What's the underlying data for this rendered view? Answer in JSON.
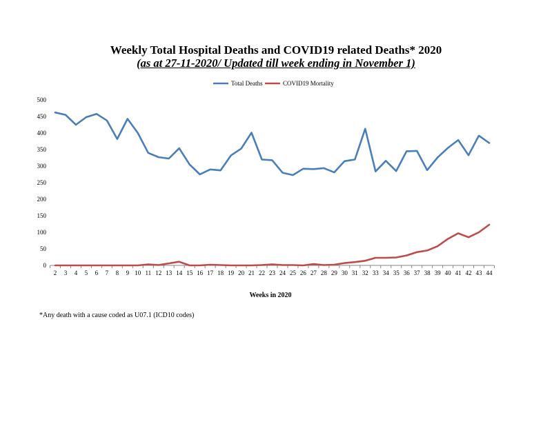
{
  "titles": {
    "main": "Weekly Total Hospital Deaths and COVID19 related Deaths* 2020",
    "sub": "(as at 27-11-2020/ Updated till week ending in November 1)"
  },
  "footnote": "*Any death with a cause coded as  U07.1 (ICD10 codes)",
  "chart_data": {
    "type": "line",
    "xlabel": "Weeks in 2020",
    "ylabel": "",
    "ylim": [
      0,
      500
    ],
    "yticks": [
      0,
      50,
      100,
      150,
      200,
      250,
      300,
      350,
      400,
      450,
      500
    ],
    "grid": false,
    "legend_position": "top-center",
    "categories": [
      "2",
      "3",
      "4",
      "5",
      "6",
      "7",
      "8",
      "9",
      "10",
      "11",
      "12",
      "13",
      "14",
      "15",
      "16",
      "17",
      "18",
      "19",
      "20",
      "21",
      "22",
      "23",
      "24",
      "25",
      "26",
      "27",
      "28",
      "29",
      "30",
      "31",
      "32",
      "33",
      "34",
      "35",
      "36",
      "37",
      "38",
      "39",
      "40",
      "41",
      "42",
      "43",
      "44"
    ],
    "series": [
      {
        "name": "Total Deaths",
        "color": "#4a7ebb",
        "values": [
          462,
          455,
          425,
          448,
          458,
          438,
          382,
          443,
          400,
          340,
          327,
          323,
          354,
          305,
          275,
          290,
          287,
          332,
          353,
          401,
          320,
          318,
          280,
          273,
          292,
          291,
          294,
          281,
          315,
          320,
          413,
          284,
          316,
          285,
          345,
          346,
          288,
          326,
          355,
          379,
          333,
          392,
          370
        ]
      },
      {
        "name": "COVID19 Mortality",
        "color": "#be4b48",
        "values": [
          0,
          0,
          0,
          0,
          0,
          0,
          0,
          0,
          0,
          3,
          1,
          6,
          11,
          0,
          0,
          2,
          1,
          0,
          0,
          0,
          1,
          3,
          1,
          1,
          0,
          4,
          1,
          2,
          7,
          10,
          14,
          23,
          23,
          24,
          30,
          40,
          45,
          58,
          80,
          97,
          85,
          100,
          123
        ]
      }
    ]
  }
}
